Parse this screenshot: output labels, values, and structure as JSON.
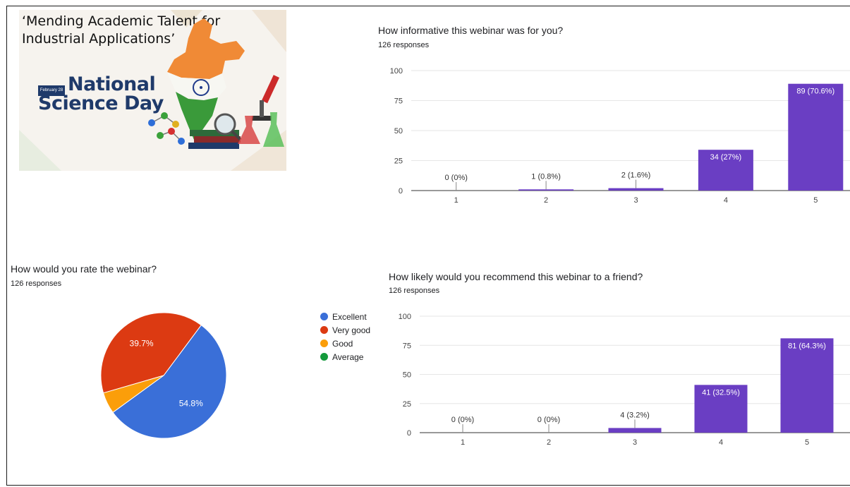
{
  "banner": {
    "title": "‘Mending Academic Talent for Industrial Applications’",
    "date_tag": "February 28",
    "event_line1": "National",
    "event_line2": "Science Day"
  },
  "colors": {
    "bar": "#6a3ec3",
    "grid": "#e6e6e6",
    "axis": "#333333",
    "pie_excellent": "#3a6fd8",
    "pie_very_good": "#dc3a12",
    "pie_good": "#fb9e0a",
    "pie_average": "#149a3b"
  },
  "informative": {
    "question": "How informative this webinar was for you?",
    "responses": "126 responses"
  },
  "rating": {
    "question": "How would you rate the webinar?",
    "responses": "126 responses"
  },
  "recommend": {
    "question": "How likely would you recommend this webinar to a friend?",
    "responses": "126 responses"
  },
  "chart_data": [
    {
      "type": "bar",
      "title": "How informative this webinar was for you?",
      "subtitle": "126 responses",
      "categories": [
        "1",
        "2",
        "3",
        "4",
        "5"
      ],
      "values": [
        0,
        1,
        2,
        34,
        89
      ],
      "labels": [
        "0 (0%)",
        "1 (0.8%)",
        "2 (1.6%)",
        "34 (27%)",
        "89 (70.6%)"
      ],
      "ylim": [
        0,
        100
      ],
      "yticks": [
        0,
        25,
        50,
        75,
        100
      ],
      "grid": true
    },
    {
      "type": "pie",
      "title": "How would you rate the webinar?",
      "subtitle": "126 responses",
      "categories": [
        "Excellent",
        "Very good",
        "Good",
        "Average"
      ],
      "values": [
        54.8,
        39.7,
        5.5,
        0
      ],
      "labels": [
        "54.8%",
        "39.7%",
        "",
        ""
      ],
      "legend": "right"
    },
    {
      "type": "bar",
      "title": "How likely would you recommend this webinar to a friend?",
      "subtitle": "126 responses",
      "categories": [
        "1",
        "2",
        "3",
        "4",
        "5"
      ],
      "values": [
        0,
        0,
        4,
        41,
        81
      ],
      "labels": [
        "0 (0%)",
        "0 (0%)",
        "4 (3.2%)",
        "41 (32.5%)",
        "81 (64.3%)"
      ],
      "ylim": [
        0,
        100
      ],
      "yticks": [
        0,
        25,
        50,
        75,
        100
      ],
      "grid": true
    }
  ]
}
